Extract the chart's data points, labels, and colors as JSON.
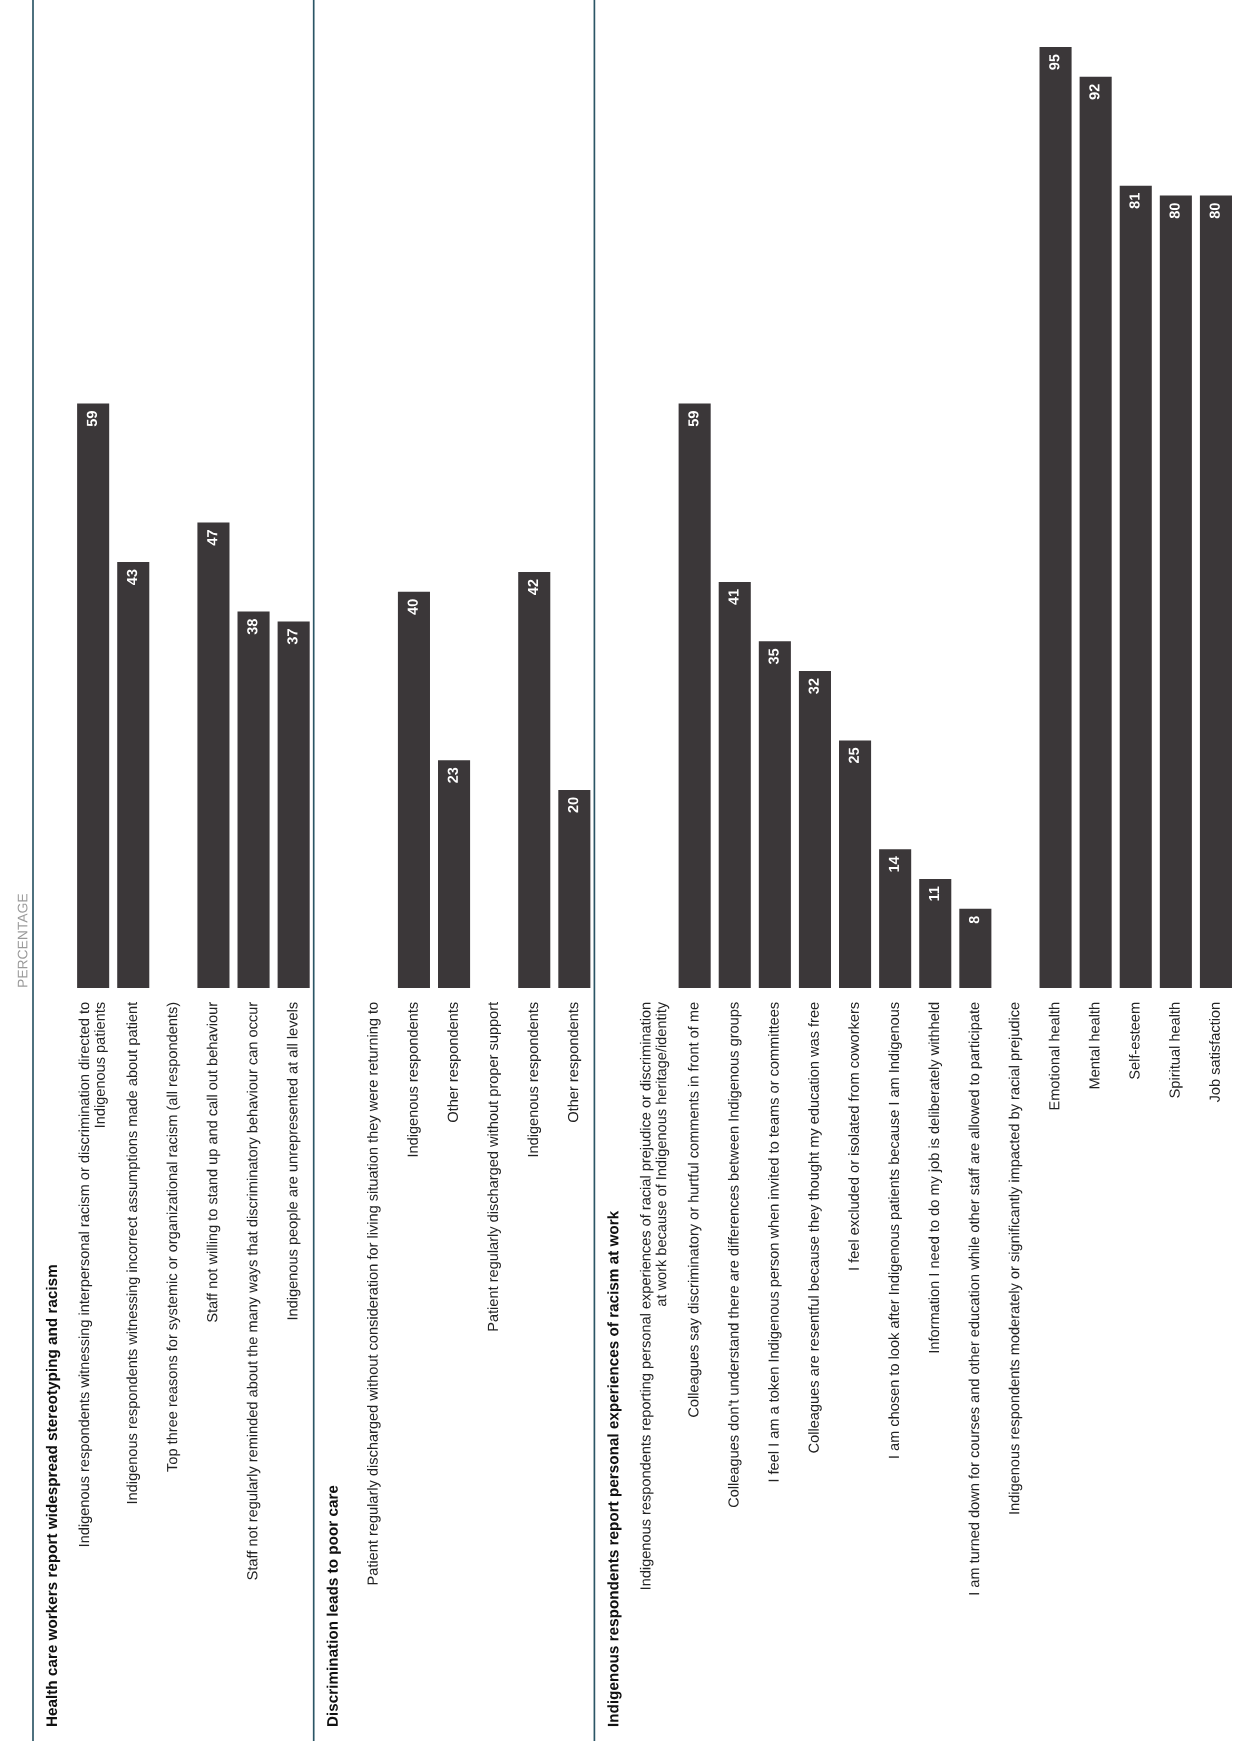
{
  "chart_data": [
    {
      "type": "bar",
      "title": "Health care workers report widespread stereotyping and racism",
      "ylabel": "PERCENTAGE",
      "color": "#3b3739",
      "data_labels": true,
      "categories": [
        "Indigenous respondents witnessing interpersonal racism or discrimination directed to\nIndigenous patients",
        "Indigenous respondents witnessing incorrect assumptions made about patient",
        "Top three reasons for systemic or organizational racism (all respondents)",
        "Staff not willing to stand up and call out behaviour",
        "Staff not regularly reminded about the many ways that discriminatory behaviour can occur",
        "Indigenous people are unrepresented at all levels"
      ],
      "values": [
        59,
        43,
        null,
        47,
        38,
        37
      ]
    },
    {
      "type": "bar",
      "title": "Discrimination leads to poor care",
      "color": "#3b3739",
      "data_labels": true,
      "categories": [
        "Patient regularly discharged without consideration for living situation they were returning to",
        "Indigenous respondents",
        "Other respondents",
        "Patient regularly discharged without proper support",
        "Indigenous respondents",
        "Other respondents"
      ],
      "values": [
        null,
        40,
        23,
        null,
        42,
        20
      ]
    },
    {
      "type": "bar",
      "title": "Indigenous respondents report personal experiences of racism at work",
      "color": "#3b3739",
      "data_labels": true,
      "categories": [
        "Indigenous respondents reporting personal experiences of racial prejudice or discrimination\nat work because of Indigenous heritage/identity",
        "Colleagues say discriminatory or hurtful comments in front of me",
        "Colleagues don't understand there are differences between Indigenous groups",
        "I feel I am a token Indigenous person when invited to teams or committees",
        "Colleagues are resentful because they thought my education was free",
        "I feel excluded or isolated from coworkers",
        "I am chosen to look after Indigenous patients because I am Indigenous",
        "Information I need to do my job is deliberately withheld",
        "I am turned down for courses and other education while other staff are allowed to participate"
      ],
      "values": [
        null,
        59,
        41,
        35,
        32,
        25,
        14,
        11,
        8
      ]
    },
    {
      "type": "bar",
      "color": "#3b3739",
      "data_labels": true,
      "categories": [
        "Indigenous respondents moderately or significantly impacted by racial prejudice",
        "Emotional health",
        "Mental health",
        "Self-esteem",
        "Spiritual health",
        "Job satisfaction"
      ],
      "values": [
        null,
        95,
        92,
        81,
        80,
        80
      ]
    }
  ]
}
